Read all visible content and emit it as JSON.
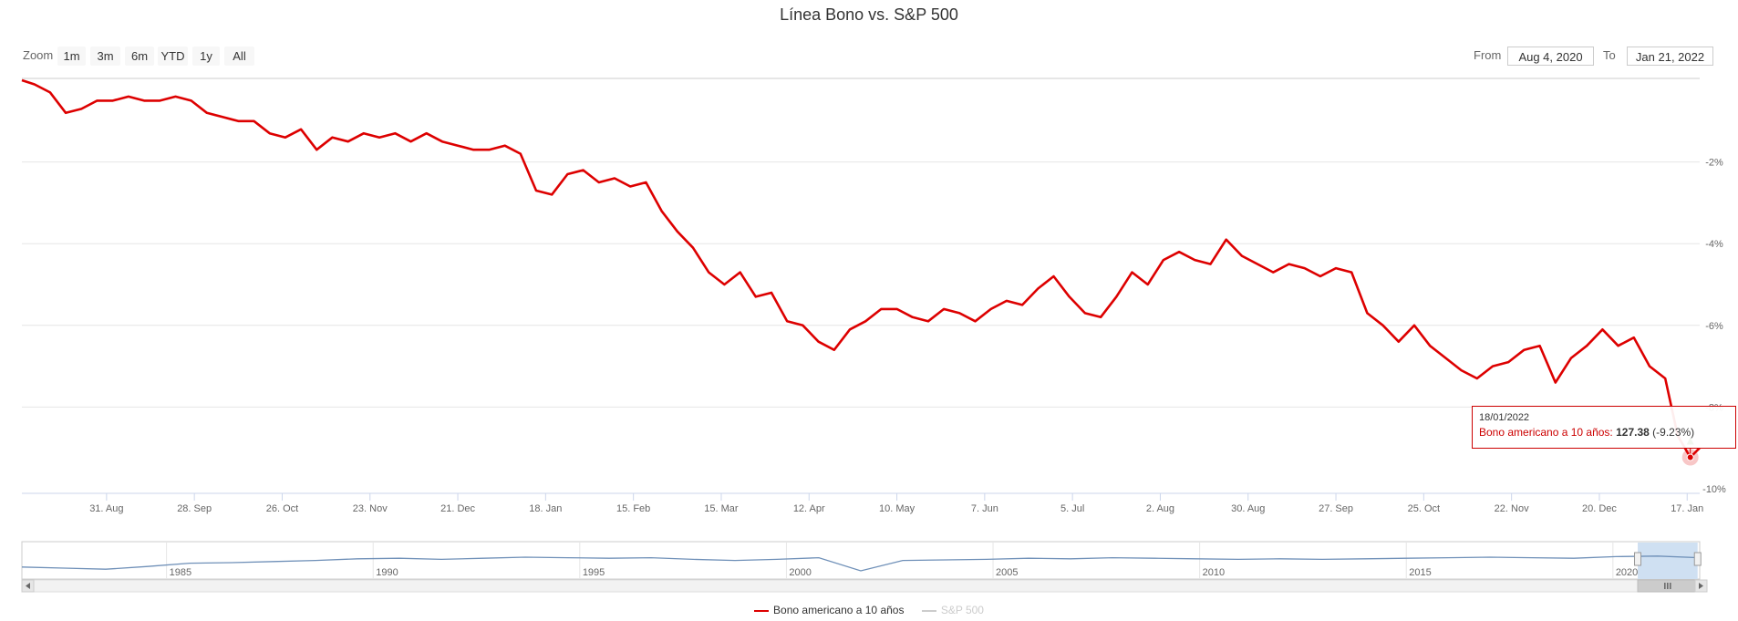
{
  "title": "Línea Bono vs. S&P 500",
  "range_selector": {
    "zoom_label": "Zoom",
    "buttons": [
      "1m",
      "3m",
      "6m",
      "YTD",
      "1y",
      "All"
    ],
    "from_label": "From",
    "from_value": "Aug 4, 2020",
    "to_label": "To",
    "to_value": "Jan 21, 2022"
  },
  "tooltip": {
    "date": "18/01/2022",
    "series_label": "Bono americano a 10 años: ",
    "value": "127.38",
    "change": " (-9.23%)"
  },
  "legend": [
    {
      "name": "Bono americano a 10 años",
      "color": "#dd0000",
      "active": true
    },
    {
      "name": "S&P 500",
      "color": "#cccccc",
      "active": false
    }
  ],
  "colors": {
    "series": "#dd0000",
    "navigator": "#6f90b8",
    "grid": "#e6e6e6",
    "navigator_mask": "#cfe0f2"
  },
  "chart_data": {
    "type": "line",
    "series": [
      {
        "name": "Bono americano a 10 años",
        "x": [
          "2020-08-04",
          "2020-08-08",
          "2020-08-13",
          "2020-08-18",
          "2020-08-23",
          "2020-08-28",
          "2020-09-02",
          "2020-09-07",
          "2020-09-12",
          "2020-09-17",
          "2020-09-22",
          "2020-09-27",
          "2020-10-02",
          "2020-10-07",
          "2020-10-12",
          "2020-10-17",
          "2020-10-22",
          "2020-10-27",
          "2020-11-01",
          "2020-11-06",
          "2020-11-11",
          "2020-11-16",
          "2020-11-21",
          "2020-11-26",
          "2020-12-01",
          "2020-12-06",
          "2020-12-11",
          "2020-12-16",
          "2020-12-21",
          "2020-12-26",
          "2020-12-31",
          "2021-01-05",
          "2021-01-10",
          "2021-01-15",
          "2021-01-20",
          "2021-01-25",
          "2021-01-30",
          "2021-02-04",
          "2021-02-09",
          "2021-02-14",
          "2021-02-19",
          "2021-02-24",
          "2021-03-01",
          "2021-03-06",
          "2021-03-11",
          "2021-03-16",
          "2021-03-21",
          "2021-03-26",
          "2021-03-31",
          "2021-04-05",
          "2021-04-10",
          "2021-04-15",
          "2021-04-20",
          "2021-04-25",
          "2021-04-30",
          "2021-05-05",
          "2021-05-10",
          "2021-05-15",
          "2021-05-20",
          "2021-05-25",
          "2021-05-30",
          "2021-06-04",
          "2021-06-09",
          "2021-06-14",
          "2021-06-19",
          "2021-06-24",
          "2021-06-29",
          "2021-07-04",
          "2021-07-09",
          "2021-07-14",
          "2021-07-19",
          "2021-07-24",
          "2021-07-29",
          "2021-08-03",
          "2021-08-08",
          "2021-08-13",
          "2021-08-18",
          "2021-08-23",
          "2021-08-28",
          "2021-09-02",
          "2021-09-07",
          "2021-09-12",
          "2021-09-17",
          "2021-09-22",
          "2021-09-27",
          "2021-10-02",
          "2021-10-07",
          "2021-10-12",
          "2021-10-17",
          "2021-10-22",
          "2021-10-27",
          "2021-11-01",
          "2021-11-06",
          "2021-11-11",
          "2021-11-16",
          "2021-11-21",
          "2021-11-26",
          "2021-12-01",
          "2021-12-06",
          "2021-12-11",
          "2021-12-16",
          "2021-12-21",
          "2021-12-26",
          "2021-12-31",
          "2022-01-05",
          "2022-01-10",
          "2022-01-14",
          "2022-01-18",
          "2022-01-21"
        ],
        "y": [
          0.0,
          -0.1,
          -0.3,
          -0.8,
          -0.7,
          -0.5,
          -0.5,
          -0.4,
          -0.5,
          -0.5,
          -0.4,
          -0.5,
          -0.8,
          -0.9,
          -1.0,
          -1.0,
          -1.3,
          -1.4,
          -1.2,
          -1.7,
          -1.4,
          -1.5,
          -1.3,
          -1.4,
          -1.3,
          -1.5,
          -1.3,
          -1.5,
          -1.6,
          -1.7,
          -1.7,
          -1.6,
          -1.8,
          -2.7,
          -2.8,
          -2.3,
          -2.2,
          -2.5,
          -2.4,
          -2.6,
          -2.5,
          -3.2,
          -3.7,
          -4.1,
          -4.7,
          -5.0,
          -4.7,
          -5.3,
          -5.2,
          -5.9,
          -6.0,
          -6.4,
          -6.6,
          -6.1,
          -5.9,
          -5.6,
          -5.6,
          -5.8,
          -5.9,
          -5.6,
          -5.7,
          -5.9,
          -5.6,
          -5.4,
          -5.5,
          -5.1,
          -4.8,
          -5.3,
          -5.7,
          -5.8,
          -5.3,
          -4.7,
          -5.0,
          -4.4,
          -4.2,
          -4.4,
          -4.5,
          -3.9,
          -4.3,
          -4.5,
          -4.7,
          -4.5,
          -4.6,
          -4.8,
          -4.6,
          -4.7,
          -5.7,
          -6.0,
          -6.4,
          -6.0,
          -6.5,
          -6.8,
          -7.1,
          -7.3,
          -7.0,
          -6.9,
          -6.6,
          -6.5,
          -7.4,
          -6.8,
          -6.5,
          -6.1,
          -6.5,
          -6.3,
          -7.0,
          -7.3,
          -8.7,
          -9.23,
          -9.0
        ]
      },
      {
        "name": "S&P 500",
        "x": [],
        "y": []
      }
    ],
    "x_tick_labels": [
      "31. Aug",
      "28. Sep",
      "26. Oct",
      "23. Nov",
      "21. Dec",
      "18. Jan",
      "15. Feb",
      "15. Mar",
      "12. Apr",
      "10. May",
      "7. Jun",
      "5. Jul",
      "2. Aug",
      "30. Aug",
      "27. Sep",
      "25. Oct",
      "22. Nov",
      "20. Dec",
      "17. Jan"
    ],
    "x_tick_dates": [
      "2020-08-31",
      "2020-09-28",
      "2020-10-26",
      "2020-11-23",
      "2020-12-21",
      "2021-01-18",
      "2021-02-15",
      "2021-03-15",
      "2021-04-12",
      "2021-05-10",
      "2021-06-07",
      "2021-07-05",
      "2021-08-02",
      "2021-08-30",
      "2021-09-27",
      "2021-10-25",
      "2021-11-22",
      "2021-12-20",
      "2022-01-17"
    ],
    "x_range": [
      "2020-08-04",
      "2022-01-21"
    ],
    "y_ticks": [
      -2,
      -4,
      -6,
      -8,
      -10
    ],
    "y_tick_labels": [
      "-2%",
      "-4%",
      "-6%",
      "-8%",
      "-10%"
    ],
    "ylim": [
      -10,
      0
    ],
    "grid": true,
    "legend_position": "bottom-center",
    "navigator": {
      "tick_labels": [
        "1985",
        "1990",
        "1995",
        "2000",
        "2005",
        "2010",
        "2015",
        "2020"
      ],
      "tick_years": [
        1985,
        1990,
        1995,
        2000,
        2005,
        2010,
        2015,
        2020
      ],
      "range_years": [
        1981.5,
        2022.1
      ],
      "selected_years": [
        2020.6,
        2022.05
      ],
      "series_y": [
        1.2,
        1.0,
        0.8,
        1.3,
        1.9,
        2.0,
        2.2,
        2.4,
        2.7,
        2.8,
        2.6,
        2.8,
        3.0,
        2.9,
        2.8,
        2.9,
        2.6,
        2.4,
        2.6,
        2.9,
        0.5,
        2.4,
        2.5,
        2.6,
        2.8,
        2.7,
        2.9,
        2.8,
        2.7,
        2.6,
        2.7,
        2.6,
        2.7,
        2.8,
        2.9,
        3.0,
        2.9,
        2.8,
        3.1,
        3.2,
        2.9
      ]
    }
  }
}
